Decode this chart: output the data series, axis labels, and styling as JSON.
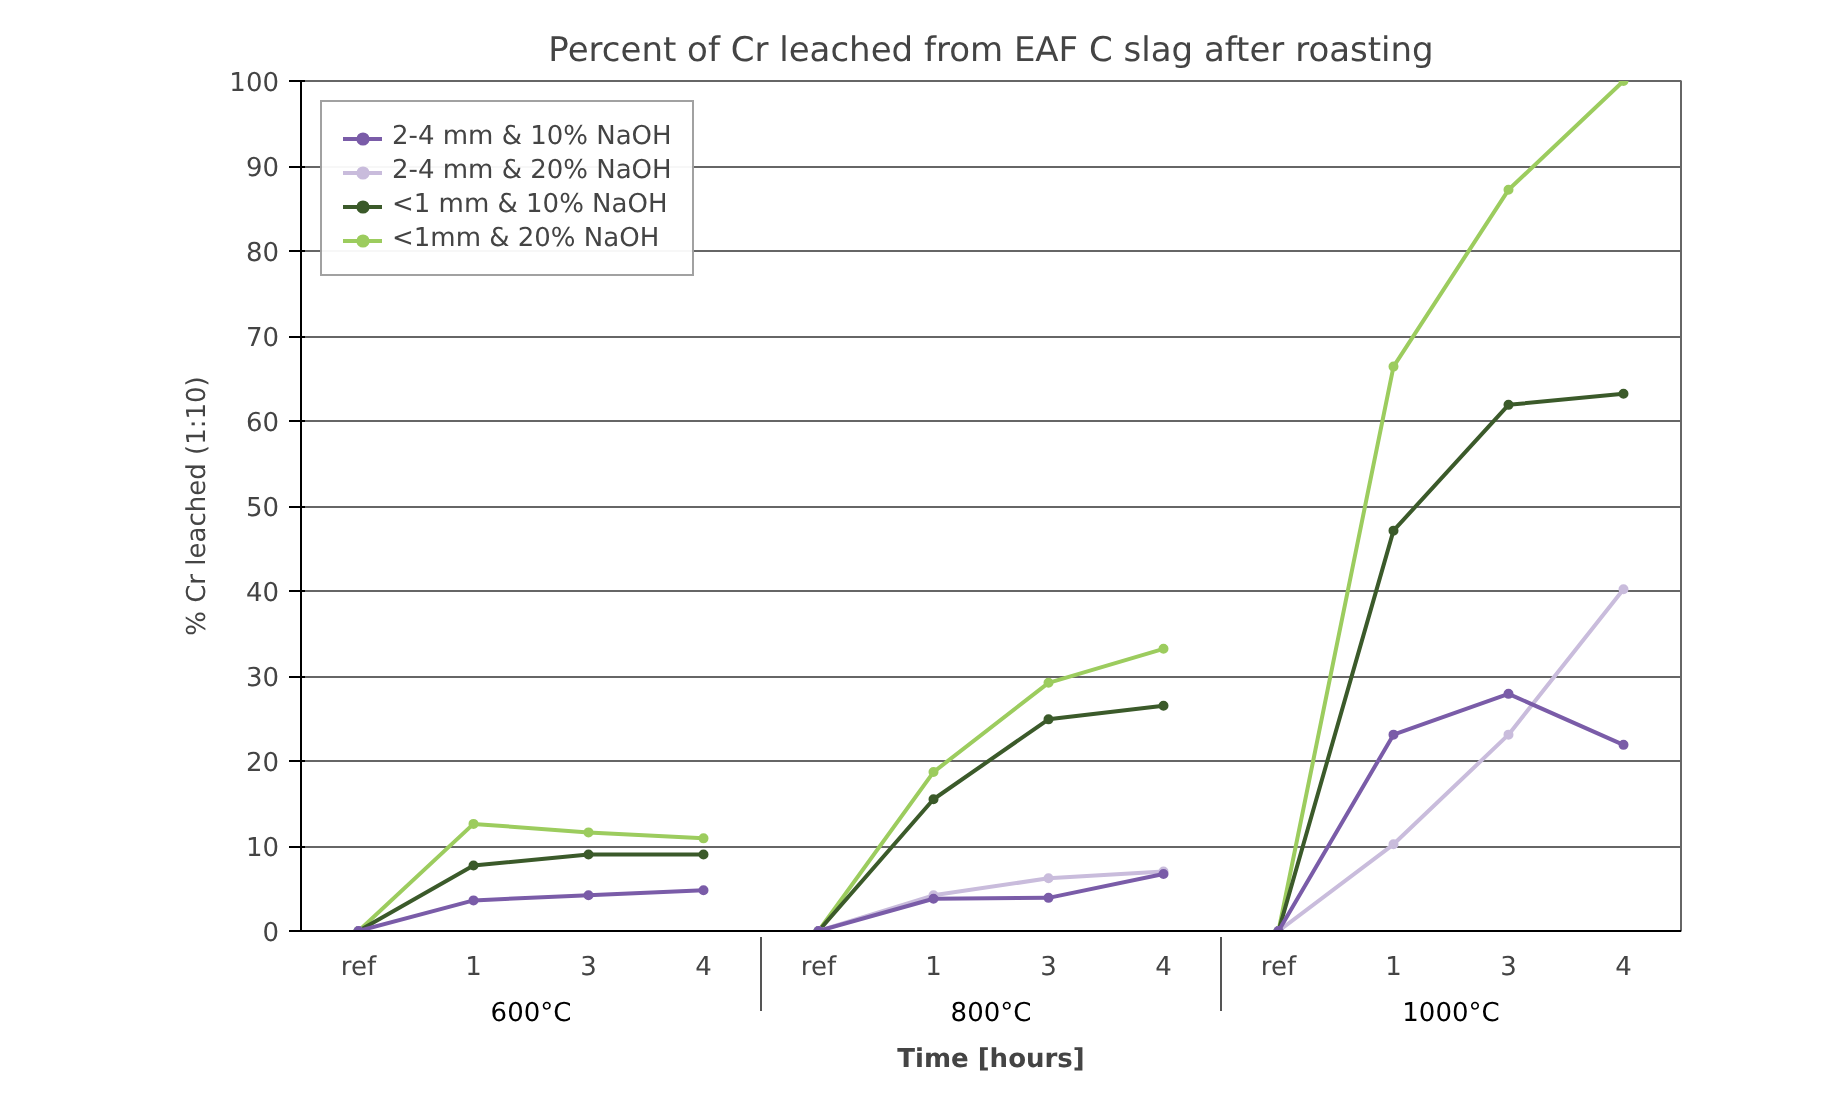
{
  "chart_data": {
    "type": "line",
    "title": "Percent of Cr leached from EAF C slag after roasting",
    "xlabel": "Time [hours]",
    "ylabel": "% Cr leached (1:10)",
    "categories": [
      "ref",
      "1",
      "3",
      "4",
      "ref",
      "1",
      "3",
      "4",
      "ref",
      "1",
      "3",
      "4"
    ],
    "annotations": [
      "600°C",
      "800°C",
      "1000°C"
    ],
    "series": [
      {
        "name": "2-4 mm & 10% NaOH",
        "color": "#7a5ca8",
        "values": [
          0,
          3.6,
          4.2,
          4.8,
          0,
          3.8,
          3.9,
          6.7,
          0,
          23.1,
          27.9,
          21.9
        ]
      },
      {
        "name": "2-4 mm & 20% NaOH",
        "color": "#c9bcdc",
        "values": [
          0,
          null,
          null,
          null,
          0,
          4.2,
          6.2,
          7.0,
          0,
          10.2,
          23.1,
          40.2
        ]
      },
      {
        "name": "<1 mm & 10% NaOH",
        "color": "#3b5a2a",
        "values": [
          0,
          7.7,
          9.0,
          9.0,
          0,
          15.5,
          24.9,
          26.5,
          0,
          47.1,
          61.9,
          63.2
        ]
      },
      {
        "name": "<1mm & 20% NaOH",
        "color": "#9ccc5e",
        "values": [
          0,
          12.6,
          11.6,
          10.9,
          0,
          18.7,
          29.2,
          33.2,
          0,
          66.4,
          87.2,
          100
        ]
      }
    ],
    "ylim": [
      0,
      100
    ],
    "yticks": [
      0,
      10,
      20,
      30,
      40,
      50,
      60,
      70,
      80,
      90,
      100
    ],
    "grid": "y",
    "legend": "top left",
    "marker": "circle",
    "line_style": "solid"
  }
}
